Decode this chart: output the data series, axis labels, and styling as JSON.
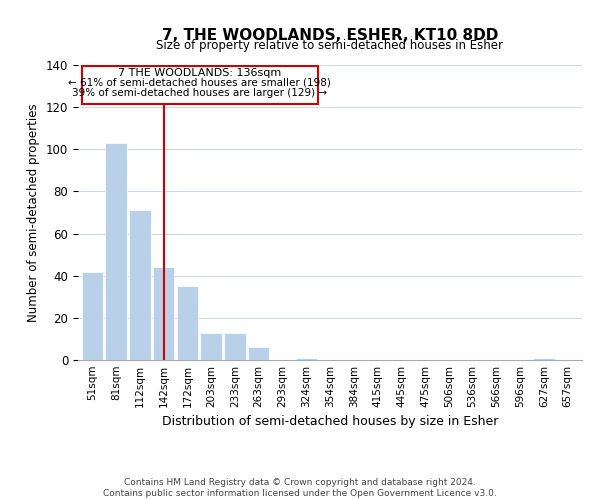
{
  "title": "7, THE WOODLANDS, ESHER, KT10 8DD",
  "subtitle": "Size of property relative to semi-detached houses in Esher",
  "xlabel": "Distribution of semi-detached houses by size in Esher",
  "ylabel": "Number of semi-detached properties",
  "bin_labels": [
    "51sqm",
    "81sqm",
    "112sqm",
    "142sqm",
    "172sqm",
    "203sqm",
    "233sqm",
    "263sqm",
    "293sqm",
    "324sqm",
    "354sqm",
    "384sqm",
    "415sqm",
    "445sqm",
    "475sqm",
    "506sqm",
    "536sqm",
    "566sqm",
    "596sqm",
    "627sqm",
    "657sqm"
  ],
  "bar_heights": [
    42,
    103,
    71,
    44,
    35,
    13,
    13,
    6,
    0,
    1,
    0,
    0,
    0,
    0,
    0,
    0,
    0,
    0,
    0,
    1,
    0
  ],
  "bar_color": "#b8d0e8",
  "marker_label": "7 THE WOODLANDS: 136sqm",
  "annotation_line1": "← 61% of semi-detached houses are smaller (198)",
  "annotation_line2": "39% of semi-detached houses are larger (129) →",
  "box_color": "#ffffff",
  "box_edge_color": "#cc0000",
  "line_color": "#cc0000",
  "ylim": [
    0,
    140
  ],
  "footer_line1": "Contains HM Land Registry data © Crown copyright and database right 2024.",
  "footer_line2": "Contains public sector information licensed under the Open Government Licence v3.0."
}
